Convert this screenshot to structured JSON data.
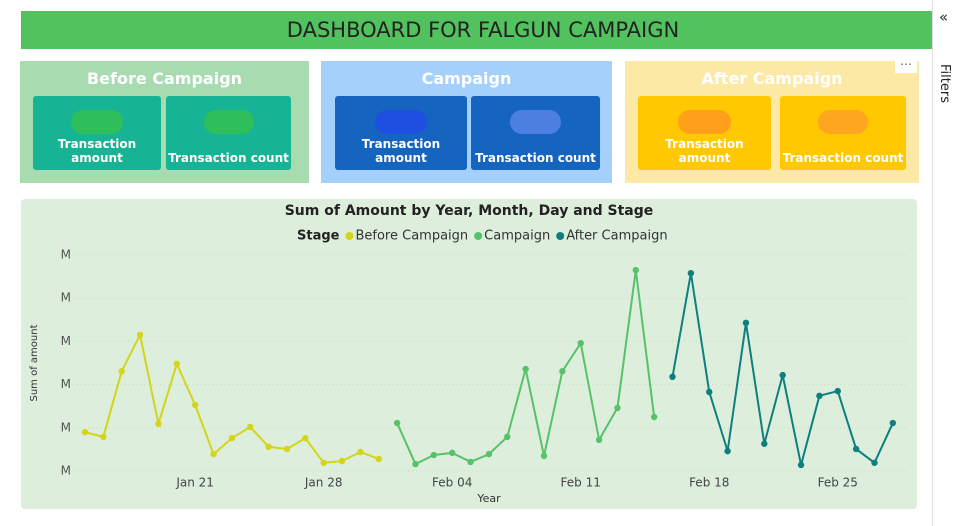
{
  "header": {
    "title": "DASHBOARD FOR FALGUN CAMPAIGN"
  },
  "cards": [
    {
      "title": "Before Campaign",
      "tiles": [
        {
          "label": "Transaction amount"
        },
        {
          "label": "Transaction count"
        }
      ]
    },
    {
      "title": "Campaign",
      "tiles": [
        {
          "label": "Transaction amount"
        },
        {
          "label": "Transaction count"
        }
      ]
    },
    {
      "title": "After Campaign",
      "tiles": [
        {
          "label": "Transaction amount"
        },
        {
          "label": "Transaction count"
        }
      ]
    }
  ],
  "filters_pane": {
    "label": "Filters"
  },
  "chart_data": {
    "type": "line",
    "title": "Sum of Amount by Year, Month, Day and Stage",
    "legend_title": "Stage",
    "x_label": "Year",
    "y_label": "Sum of amount",
    "categories": [
      null,
      null,
      null,
      null,
      null,
      null,
      "Jan 21",
      null,
      null,
      null,
      null,
      null,
      null,
      "Jan 28",
      null,
      null,
      null,
      null,
      null,
      null,
      "Feb 04",
      null,
      null,
      null,
      null,
      null,
      null,
      "Feb 11",
      null,
      null,
      null,
      null,
      null,
      null,
      "Feb 18",
      null,
      null,
      null,
      null,
      null,
      null,
      "Feb 25",
      null,
      null,
      null
    ],
    "ylim": [
      0,
      5
    ],
    "yticks": [
      {
        "value": 0,
        "label": "M"
      },
      {
        "value": 1,
        "label": "M"
      },
      {
        "value": 2,
        "label": "M"
      },
      {
        "value": 3,
        "label": "M"
      },
      {
        "value": 4,
        "label": "M"
      },
      {
        "value": 5,
        "label": "M"
      }
    ],
    "grid": true,
    "series": [
      {
        "name": "Before Campaign",
        "color": "#d4d418",
        "values": [
          0.9,
          0.79,
          2.31,
          3.15,
          1.09,
          2.48,
          1.53,
          0.39,
          0.76,
          1.02,
          0.56,
          0.51,
          0.76,
          0.19,
          0.23,
          0.44,
          0.28,
          null,
          null,
          null,
          null,
          null,
          null,
          null,
          null,
          null,
          null,
          null,
          null,
          null,
          null,
          null,
          null,
          null,
          null,
          null,
          null,
          null,
          null,
          null,
          null,
          null,
          null,
          null,
          null
        ]
      },
      {
        "name": "Campaign",
        "color": "#56c26a",
        "values": [
          null,
          null,
          null,
          null,
          null,
          null,
          null,
          null,
          null,
          null,
          null,
          null,
          null,
          null,
          null,
          null,
          null,
          1.11,
          0.16,
          0.37,
          0.42,
          0.21,
          0.39,
          0.79,
          2.36,
          0.35,
          2.31,
          2.96,
          0.72,
          1.46,
          4.65,
          1.25,
          null,
          null,
          null,
          null,
          null,
          null,
          null,
          null,
          null,
          null,
          null,
          null,
          null
        ]
      },
      {
        "name": "After Campaign",
        "color": "#0e7f7f",
        "values": [
          null,
          null,
          null,
          null,
          null,
          null,
          null,
          null,
          null,
          null,
          null,
          null,
          null,
          null,
          null,
          null,
          null,
          null,
          null,
          null,
          null,
          null,
          null,
          null,
          null,
          null,
          null,
          null,
          null,
          null,
          null,
          null,
          2.18,
          4.58,
          1.83,
          0.46,
          3.43,
          0.63,
          2.22,
          0.14,
          1.74,
          1.85,
          0.51,
          0.19,
          1.11
        ]
      }
    ]
  }
}
